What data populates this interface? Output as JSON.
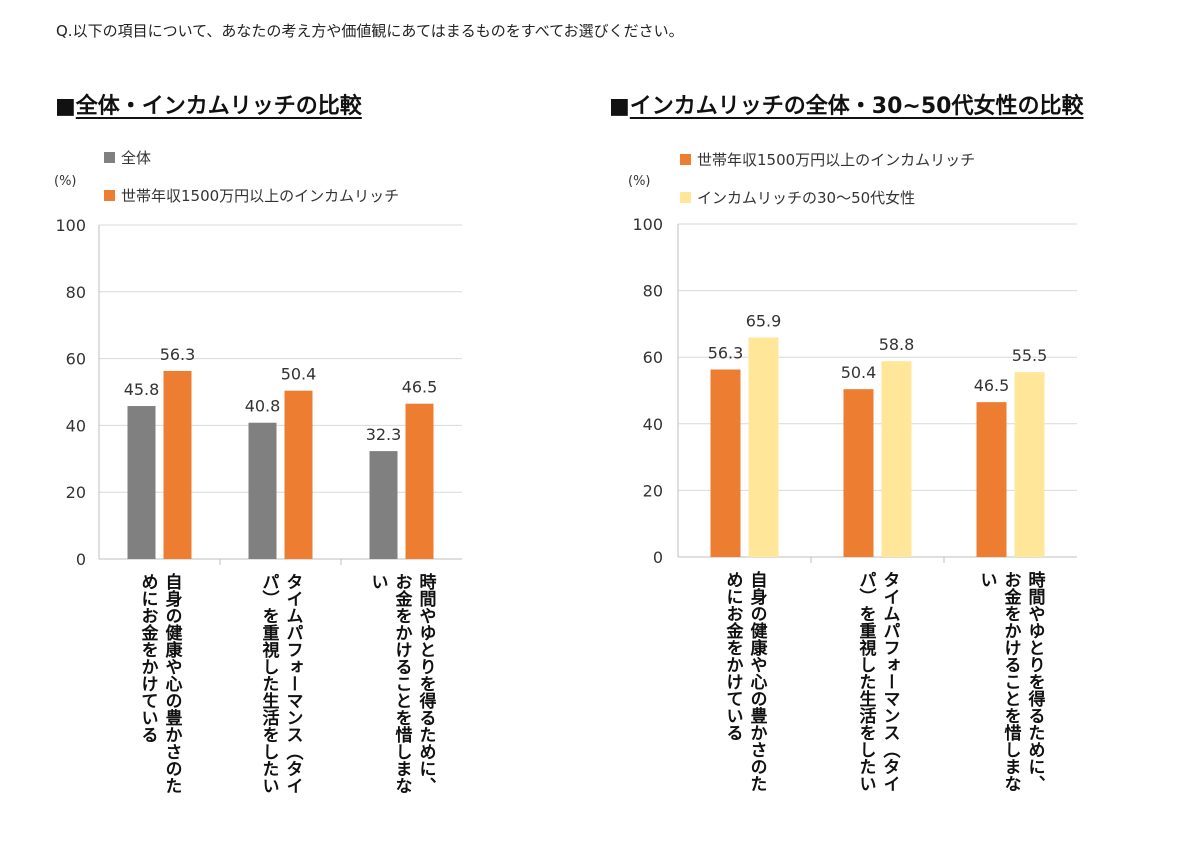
{
  "question": "Q.以下の項目について、あなたの考え方や価値観にあてはまるものをすべてお選びください。",
  "colors": {
    "gray": "#808080",
    "orange": "#ED7D31",
    "light_yellow": "#FFE699"
  },
  "chart_data": [
    {
      "type": "bar",
      "title": "■全体・インカムリッチの比較",
      "title_mark": "■",
      "title_text": "全体・インカムリッチの比較",
      "unit": "(%)",
      "ylim": [
        0,
        100
      ],
      "yticks": [
        "0",
        "20",
        "40",
        "60",
        "80",
        "100"
      ],
      "grid": true,
      "legend_position": "top-left",
      "categories": [
        [
          "自身の健康や心の豊かさのた",
          "めにお金をかけている"
        ],
        [
          "タイムパフォーマンス（タイ",
          "パ）を重視した生活をしたい"
        ],
        [
          "時間やゆとりを得るために、",
          "お金をかけることを惜しまな",
          "い"
        ]
      ],
      "series": [
        {
          "name": "全体",
          "color": "#808080",
          "values": [
            45.8,
            40.8,
            32.3
          ],
          "labels": [
            "45.8",
            "40.8",
            "32.3"
          ]
        },
        {
          "name": "世帯年収1500万円以上のインカムリッチ",
          "color": "#ED7D31",
          "values": [
            56.3,
            50.4,
            46.5
          ],
          "labels": [
            "56.3",
            "50.4",
            "46.5"
          ]
        }
      ]
    },
    {
      "type": "bar",
      "title": "■インカムリッチの全体・30~50代女性の比較",
      "title_mark": "■",
      "title_text": "インカムリッチの全体・30~50代女性の比較",
      "unit": "(%)",
      "ylim": [
        0,
        100
      ],
      "yticks": [
        "0",
        "20",
        "40",
        "60",
        "80",
        "100"
      ],
      "grid": true,
      "legend_position": "top-left",
      "categories": [
        [
          "自身の健康や心の豊かさのた",
          "めにお金をかけている"
        ],
        [
          "タイムパフォーマンス（タイ",
          "パ）を重視した生活をしたい"
        ],
        [
          "時間やゆとりを得るために、",
          "お金をかけることを惜しまな",
          "い"
        ]
      ],
      "series": [
        {
          "name": "世帯年収1500万円以上のインカムリッチ",
          "color": "#ED7D31",
          "values": [
            56.3,
            50.4,
            46.5
          ],
          "labels": [
            "56.3",
            "50.4",
            "46.5"
          ]
        },
        {
          "name": "インカムリッチの30〜50代女性",
          "color": "#FFE699",
          "values": [
            65.9,
            58.8,
            55.5
          ],
          "labels": [
            "65.9",
            "58.8",
            "55.5"
          ]
        }
      ]
    }
  ]
}
